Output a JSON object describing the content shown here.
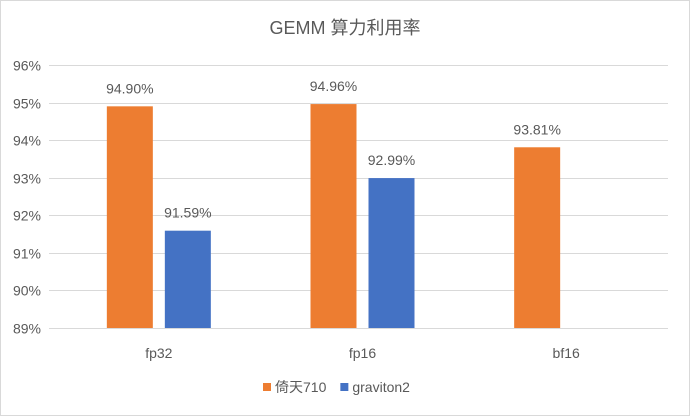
{
  "chart_data": {
    "type": "bar",
    "title": "GEMM 算力利用率",
    "categories": [
      "fp32",
      "fp16",
      "bf16"
    ],
    "series": [
      {
        "name": "倚天710",
        "color": "#ED7D31",
        "values": [
          94.9,
          94.96,
          93.81
        ],
        "labels": [
          "94.90%",
          "94.96%",
          "93.81%"
        ]
      },
      {
        "name": "graviton2",
        "color": "#4472C4",
        "values": [
          91.59,
          92.99,
          null
        ],
        "labels": [
          "91.59%",
          "92.99%",
          null
        ]
      }
    ],
    "ylim": [
      89,
      96
    ],
    "yticks": [
      {
        "value": 89,
        "label": "89%"
      },
      {
        "value": 90,
        "label": "90%"
      },
      {
        "value": 91,
        "label": "91%"
      },
      {
        "value": 92,
        "label": "92%"
      },
      {
        "value": 93,
        "label": "93%"
      },
      {
        "value": 94,
        "label": "94%"
      },
      {
        "value": 95,
        "label": "95%"
      },
      {
        "value": 96,
        "label": "96%"
      }
    ],
    "grid": true,
    "legend": "bottom-center"
  }
}
